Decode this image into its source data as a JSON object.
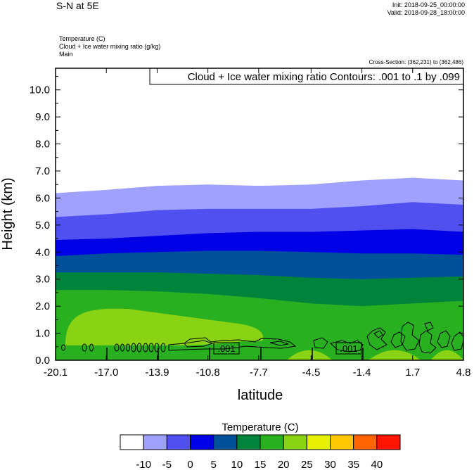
{
  "header": {
    "title": "S-N at 5E",
    "init": "Init: 2018-09-25_00:00:00",
    "valid": "Valid: 2018-09-28_18:00:00",
    "field1": "Temperature   (C)",
    "field2": "Cloud + Ice water mixing ratio   (g/kg)",
    "field3": "Main",
    "cross_section": "Cross-Section: (362,231) to (362,486)"
  },
  "chart_data": {
    "type": "heatmap",
    "contour_label": "Cloud + Ice water mixing ratio Contours: .001 to .1 by .099",
    "contour_tags": [
      ".001",
      ".001"
    ],
    "xlabel": "latitude",
    "ylabel": "Height (km)",
    "xlim": [
      -20.1,
      4.8
    ],
    "ylim": [
      0.0,
      10.8
    ],
    "x_ticks": [
      "-20.1",
      "-17.0",
      "-13.9",
      "-10.8",
      "-7.7",
      "-4.5",
      "-1.4",
      "1.7",
      "4.8"
    ],
    "y_ticks": [
      "0.0",
      "1.0",
      "2.0",
      "3.0",
      "4.0",
      "5.0",
      "6.0",
      "7.0",
      "8.0",
      "9.0",
      "10.0"
    ],
    "isotherm_x": [
      -20.1,
      -17.0,
      -13.9,
      -10.8,
      -7.7,
      -4.5,
      -1.4,
      1.7,
      4.8
    ],
    "isotherms": [
      {
        "level": -10,
        "heights": [
          6.18,
          6.3,
          6.45,
          6.5,
          6.45,
          6.5,
          6.65,
          6.75,
          6.65
        ]
      },
      {
        "level": -5,
        "heights": [
          5.3,
          5.4,
          5.55,
          5.6,
          5.6,
          5.6,
          5.7,
          5.85,
          5.75
        ]
      },
      {
        "level": 0,
        "heights": [
          4.45,
          4.5,
          4.6,
          4.7,
          4.75,
          4.75,
          4.8,
          4.85,
          4.75
        ]
      },
      {
        "level": 5,
        "heights": [
          3.85,
          3.95,
          4.0,
          4.05,
          4.05,
          4.0,
          3.95,
          3.95,
          3.9
        ]
      },
      {
        "level": 10,
        "heights": [
          3.25,
          3.25,
          3.25,
          3.2,
          3.15,
          3.05,
          3.0,
          3.05,
          3.1
        ]
      },
      {
        "level": 15,
        "heights": [
          2.6,
          2.6,
          2.55,
          2.45,
          2.3,
          2.1,
          2.0,
          2.1,
          2.2
        ]
      }
    ],
    "warm_core": {
      "level": 20,
      "x": [
        -19.5,
        -7.5
      ],
      "peak_height": 1.95
    },
    "colorbar": {
      "title": "Temperature  (C)",
      "labels": [
        "-10",
        "-5",
        "0",
        "5",
        "10",
        "15",
        "20",
        "25",
        "30",
        "35",
        "40"
      ],
      "colors": [
        "#ffffff",
        "#a0a0ff",
        "#5050f0",
        "#0000e6",
        "#00509a",
        "#00843c",
        "#28b020",
        "#8ad214",
        "#e6f000",
        "#ffc800",
        "#ff6400",
        "#ff1400"
      ]
    }
  }
}
